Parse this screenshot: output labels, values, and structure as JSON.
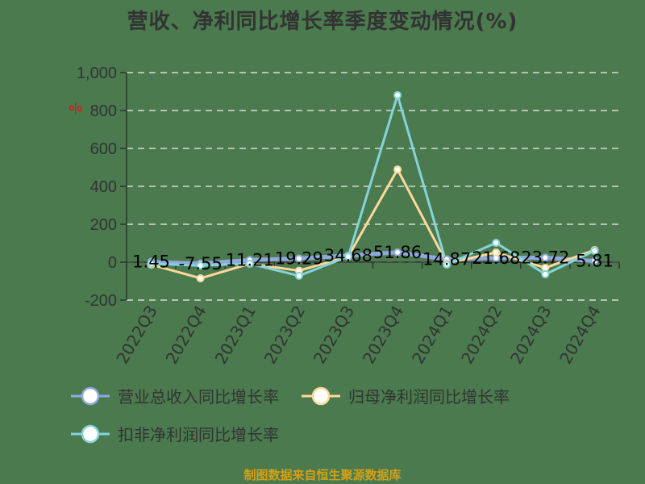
{
  "title": "营收、净利同比增长率季度变动情况(%)",
  "source": "制图数据来自恒生聚源数据库",
  "colors": {
    "background": "#4a7a4e",
    "axis": "#333333",
    "grid": "#d9d9d9",
    "revenue": "#8fa9dd",
    "net_profit": "#fdd89a",
    "deducted_net_profit": "#85d4d9",
    "unit_mark": "#ff0000"
  },
  "unit_mark": "%",
  "legend": [
    {
      "label": "营业总收入同比增长率",
      "color": "#8fa9dd"
    },
    {
      "label": "归母净利润同比增长率",
      "color": "#fdd89a"
    },
    {
      "label": "扣非净利润同比增长率",
      "color": "#85d4d9"
    }
  ],
  "chart_data": {
    "type": "line",
    "title": "营收、净利同比增长率季度变动情况(%)",
    "xlabel": "",
    "ylabel": "%",
    "ylim": [
      -200,
      1000
    ],
    "yticks": [
      -200,
      0,
      200,
      400,
      600,
      800,
      1000
    ],
    "ytick_labels": [
      "-200",
      "0",
      "200",
      "400",
      "600",
      "800",
      "1,000"
    ],
    "grid": "horizontal dashed",
    "legend_position": "bottom",
    "categories": [
      "2022Q3",
      "2022Q4",
      "2023Q1",
      "2023Q2",
      "2023Q3",
      "2023Q4",
      "2024Q1",
      "2024Q2",
      "2024Q3",
      "2024Q4"
    ],
    "series": [
      {
        "name": "营业总收入同比增长率",
        "values": [
          1.45,
          -7.55,
          11.21,
          19.29,
          34.68,
          51.86,
          14.87,
          21.68,
          23.72,
          5.81
        ],
        "labels_shown": true
      },
      {
        "name": "归母净利润同比增长率",
        "values": [
          -13,
          -85,
          -8,
          -45,
          30,
          489,
          -5,
          51,
          -30,
          64
        ]
      },
      {
        "name": "扣非净利润同比增长率",
        "values": [
          -8,
          -18,
          -8,
          -72,
          30,
          881,
          -13,
          102,
          -64,
          60
        ]
      }
    ],
    "data_labels": [
      "1.45",
      "-7.55",
      "11.21",
      "19.29",
      "34.68",
      "51.86",
      "14.87",
      "21.68",
      "23.72",
      "5.81"
    ]
  }
}
